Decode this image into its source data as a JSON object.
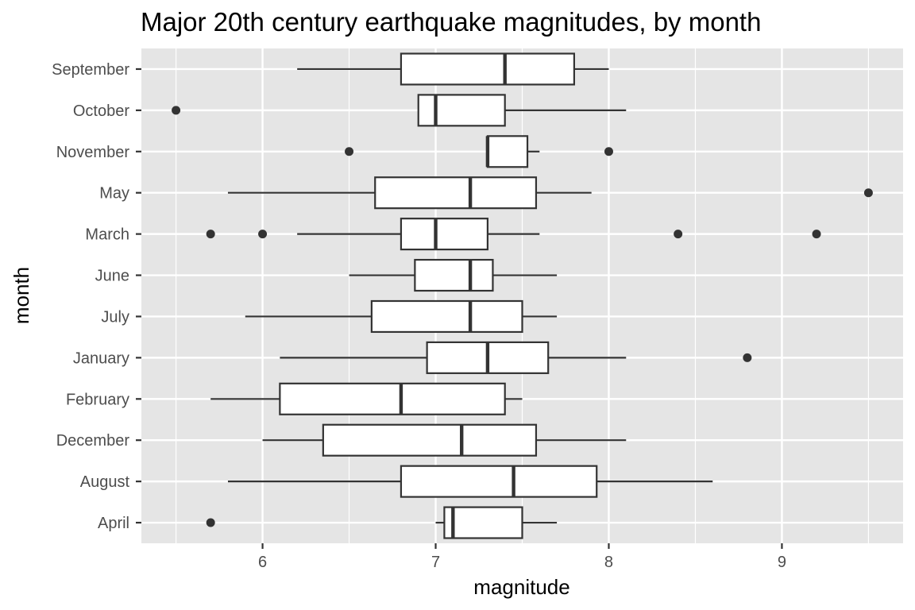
{
  "chart_data": {
    "type": "boxplot",
    "orientation": "horizontal",
    "title": "Major 20th century earthquake magnitudes, by month",
    "xlabel": "magnitude",
    "ylabel": "month",
    "xlim": [
      5.3,
      9.7
    ],
    "xticks": [
      6,
      7,
      8,
      9
    ],
    "xtick_labels": [
      "6",
      "7",
      "8",
      "9"
    ],
    "grid": true,
    "colors": {
      "panel": "#e5e5e5",
      "grid": "#ffffff",
      "box_fill": "#ffffff",
      "box_stroke": "#333333",
      "outlier": "#333333"
    },
    "categories": [
      "September",
      "October",
      "November",
      "May",
      "March",
      "June",
      "July",
      "January",
      "February",
      "December",
      "August",
      "April"
    ],
    "boxes": [
      {
        "month": "September",
        "whisker_low": 6.2,
        "q1": 6.8,
        "median": 7.4,
        "q3": 7.8,
        "whisker_high": 8.0,
        "outliers": []
      },
      {
        "month": "October",
        "whisker_low": 6.9,
        "q1": 6.9,
        "median": 7.0,
        "q3": 7.4,
        "whisker_high": 8.1,
        "outliers": [
          5.5
        ]
      },
      {
        "month": "November",
        "whisker_low": 7.3,
        "q1": 7.3,
        "median": 7.3,
        "q3": 7.53,
        "whisker_high": 7.6,
        "outliers": [
          6.5,
          8.0
        ]
      },
      {
        "month": "May",
        "whisker_low": 5.8,
        "q1": 6.65,
        "median": 7.2,
        "q3": 7.58,
        "whisker_high": 7.9,
        "outliers": [
          9.5
        ]
      },
      {
        "month": "March",
        "whisker_low": 6.2,
        "q1": 6.8,
        "median": 7.0,
        "q3": 7.3,
        "whisker_high": 7.6,
        "outliers": [
          5.7,
          6.0,
          8.4,
          9.2
        ]
      },
      {
        "month": "June",
        "whisker_low": 6.5,
        "q1": 6.88,
        "median": 7.2,
        "q3": 7.33,
        "whisker_high": 7.7,
        "outliers": []
      },
      {
        "month": "July",
        "whisker_low": 5.9,
        "q1": 6.63,
        "median": 7.2,
        "q3": 7.5,
        "whisker_high": 7.7,
        "outliers": []
      },
      {
        "month": "January",
        "whisker_low": 6.1,
        "q1": 6.95,
        "median": 7.3,
        "q3": 7.65,
        "whisker_high": 8.1,
        "outliers": [
          8.8
        ]
      },
      {
        "month": "February",
        "whisker_low": 5.7,
        "q1": 6.1,
        "median": 6.8,
        "q3": 7.4,
        "whisker_high": 7.5,
        "outliers": []
      },
      {
        "month": "December",
        "whisker_low": 6.0,
        "q1": 6.35,
        "median": 7.15,
        "q3": 7.58,
        "whisker_high": 8.1,
        "outliers": []
      },
      {
        "month": "August",
        "whisker_low": 5.8,
        "q1": 6.8,
        "median": 7.45,
        "q3": 7.93,
        "whisker_high": 8.6,
        "outliers": []
      },
      {
        "month": "April",
        "whisker_low": 7.0,
        "q1": 7.05,
        "median": 7.1,
        "q3": 7.5,
        "whisker_high": 7.7,
        "outliers": [
          5.7
        ]
      }
    ]
  }
}
